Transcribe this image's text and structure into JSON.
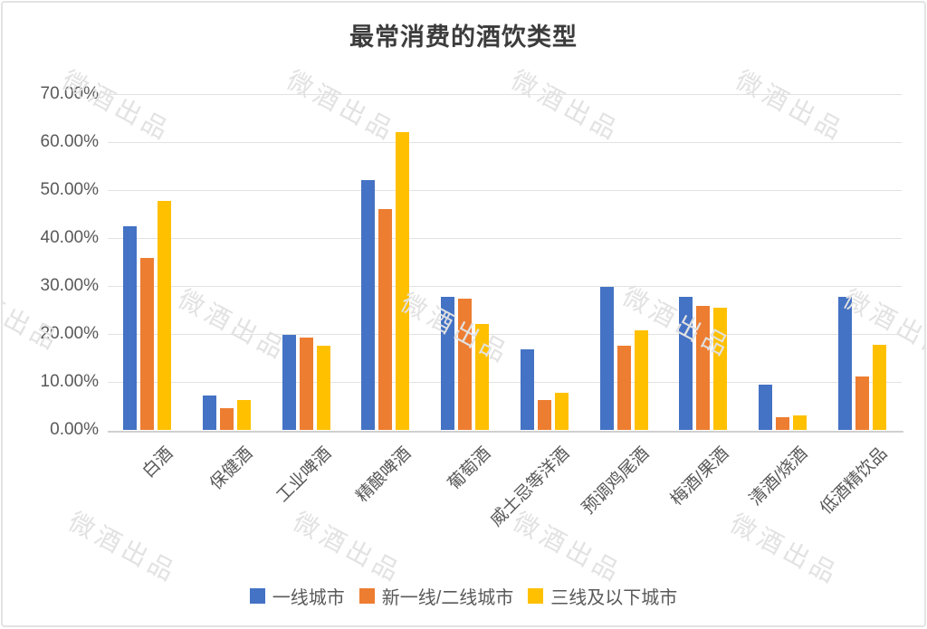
{
  "watermark": {
    "text": "微酒出品"
  },
  "chart_data": {
    "type": "bar",
    "title": "最常消费的酒饮类型",
    "categories": [
      "白酒",
      "保健酒",
      "工业啤酒",
      "精酿啤酒",
      "葡萄酒",
      "威士忌等洋酒",
      "预调鸡尾酒",
      "梅酒/果酒",
      "清酒/烧酒",
      "低酒精饮品"
    ],
    "series": [
      {
        "name": "一线城市",
        "color": "#4472C4",
        "values": [
          42.4,
          7.2,
          19.9,
          52.0,
          27.8,
          16.8,
          29.8,
          27.7,
          9.4,
          27.8
        ]
      },
      {
        "name": "新一线/二线城市",
        "color": "#ED7D31",
        "values": [
          35.8,
          4.5,
          19.3,
          46.0,
          27.4,
          6.3,
          17.6,
          25.9,
          2.7,
          11.2
        ]
      },
      {
        "name": "三线及以下城市",
        "color": "#FFC000",
        "values": [
          47.7,
          6.2,
          17.5,
          62.0,
          22.1,
          7.7,
          20.8,
          25.4,
          3.1,
          17.7
        ]
      }
    ],
    "xlabel": "",
    "ylabel": "",
    "ylim": [
      0,
      70
    ],
    "ytick_step": 10,
    "yticks": [
      "0.00%",
      "10.00%",
      "20.00%",
      "30.00%",
      "40.00%",
      "50.00%",
      "60.00%",
      "70.00%"
    ],
    "grid": "horizontal",
    "legend_position": "bottom"
  }
}
